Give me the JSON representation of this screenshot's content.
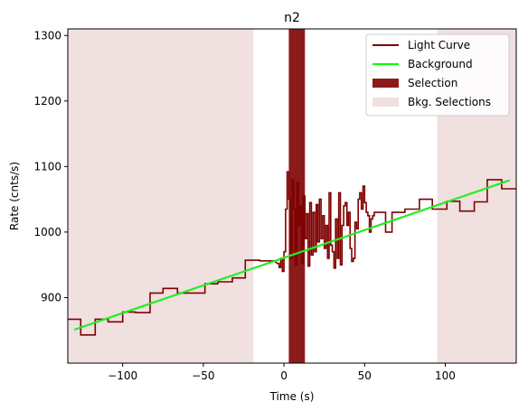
{
  "chart_data": {
    "type": "line",
    "title": "n2",
    "xlabel": "Time (s)",
    "ylabel": "Rate (cnts/s)",
    "xlim": [
      -134,
      144
    ],
    "ylim": [
      800,
      1310
    ],
    "xticks": [
      -100,
      -50,
      0,
      50,
      100
    ],
    "yticks": [
      900,
      1000,
      1100,
      1200,
      1300
    ],
    "grid": false,
    "legend_position": "top-right",
    "legend": [
      {
        "label": "Light Curve",
        "kind": "line",
        "color": "#7f0000"
      },
      {
        "label": "Background",
        "kind": "line",
        "color": "#00ff00"
      },
      {
        "label": "Selection",
        "kind": "patch",
        "color": "#8b1a1a"
      },
      {
        "label": "Bkg. Selections",
        "kind": "patch",
        "color": "#f0e0e0"
      }
    ],
    "background_line": {
      "x": [
        -130,
        140
      ],
      "y": [
        851,
        1079
      ],
      "color": "#22ee22"
    },
    "bkg_selections": [
      [
        -134,
        -19
      ],
      [
        95,
        144
      ]
    ],
    "selection": [
      3,
      13
    ],
    "light_curve": {
      "color": "#7f0000",
      "bins_wide": [
        [
          -134,
          -126,
          867
        ],
        [
          -126,
          -117,
          843
        ],
        [
          -117,
          -109,
          867
        ],
        [
          -109,
          -100,
          863
        ],
        [
          -100,
          -92,
          878
        ],
        [
          -92,
          -83,
          877
        ],
        [
          -83,
          -75,
          907
        ],
        [
          -75,
          -66,
          914
        ],
        [
          -66,
          -58,
          907
        ],
        [
          -58,
          -49,
          907
        ],
        [
          -49,
          -41,
          921
        ],
        [
          -41,
          -32,
          924
        ],
        [
          -32,
          -24,
          930
        ],
        [
          -24,
          -19,
          957
        ],
        [
          -19,
          -15,
          957
        ],
        [
          -15,
          -6,
          956
        ]
      ],
      "bins_fine_x": [
        -4,
        -3,
        -2,
        -1,
        0,
        1,
        2,
        3,
        4,
        5,
        6,
        7,
        8,
        9,
        10,
        11,
        12,
        13,
        14,
        15,
        16,
        17,
        18,
        19,
        20,
        21,
        22,
        23,
        24,
        25,
        26,
        27,
        28,
        29,
        30,
        31,
        32,
        33,
        34,
        35,
        36,
        37,
        38,
        39,
        40,
        41,
        42,
        43,
        44,
        45,
        46,
        47,
        48,
        49,
        50,
        51,
        52,
        53,
        54,
        55,
        56
      ],
      "bins_fine_y": [
        952,
        946,
        960,
        940,
        970,
        1035,
        1092,
        1050,
        960,
        1080,
        1035,
        950,
        1075,
        1010,
        1040,
        952,
        1055,
        990,
        1028,
        948,
        1045,
        965,
        1030,
        970,
        1042,
        985,
        1050,
        990,
        1025,
        975,
        1010,
        960,
        1060,
        980,
        970,
        945,
        1020,
        960,
        1060,
        950,
        1010,
        1040,
        1045,
        1010,
        1030,
        975,
        955,
        960,
        1015,
        1005,
        1050,
        1060,
        1035,
        1070,
        1045,
        1030,
        1025,
        1000,
        1020,
        1025,
        1030
      ],
      "bins_wide_right": [
        [
          56,
          58,
          1030
        ],
        [
          58,
          63,
          1030
        ],
        [
          63,
          67,
          1000
        ],
        [
          67,
          75,
          1030
        ],
        [
          75,
          84,
          1035
        ],
        [
          84,
          92,
          1050
        ],
        [
          92,
          101,
          1035
        ],
        [
          101,
          109,
          1047
        ],
        [
          109,
          118,
          1032
        ],
        [
          118,
          126,
          1046
        ],
        [
          126,
          135,
          1080
        ],
        [
          135,
          144,
          1066
        ]
      ]
    }
  }
}
